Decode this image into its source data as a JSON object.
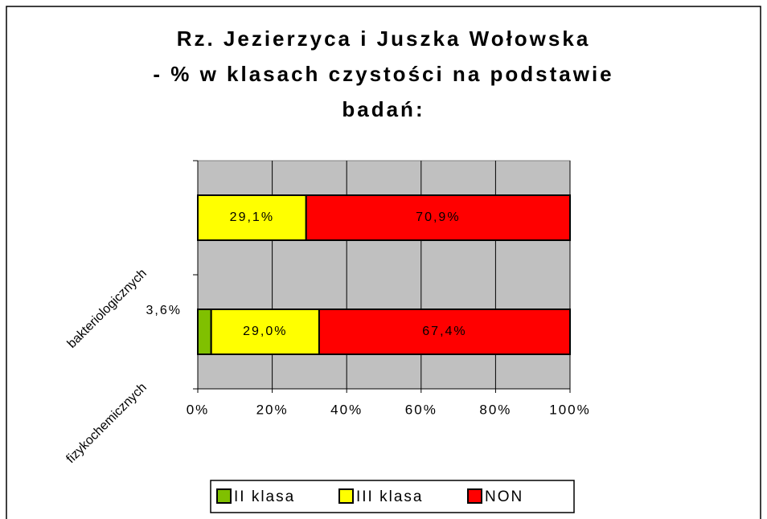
{
  "chart_data": {
    "type": "stacked-bar-horizontal",
    "title": [
      "Rz. Jezierzyca i Juszka Wołowska",
      "- % w klasach czystości na podstawie",
      "badań:"
    ],
    "categories": [
      "bakteriologicznych",
      "fizykochemicznych"
    ],
    "series": [
      {
        "name": "II klasa",
        "color": "#80c000",
        "values": [
          null,
          3.6
        ],
        "value_labels": [
          null,
          "3,6%"
        ]
      },
      {
        "name": "III klasa",
        "color": "#ffff00",
        "values": [
          29.1,
          29.0
        ],
        "value_labels": [
          "29,1%",
          "29,0%"
        ]
      },
      {
        "name": "NON",
        "color": "#ff0000",
        "values": [
          70.9,
          67.4
        ],
        "value_labels": [
          "70,9%",
          "67,4%"
        ]
      }
    ],
    "xlim": [
      0,
      100
    ],
    "xticks": [
      {
        "value": 0,
        "label": "0%"
      },
      {
        "value": 20,
        "label": "20%"
      },
      {
        "value": 40,
        "label": "40%"
      },
      {
        "value": 60,
        "label": "60%"
      },
      {
        "value": 80,
        "label": "80%"
      },
      {
        "value": 100,
        "label": "100%"
      }
    ],
    "grid": true,
    "background": "#c0c0c0",
    "legend": "bottom"
  }
}
